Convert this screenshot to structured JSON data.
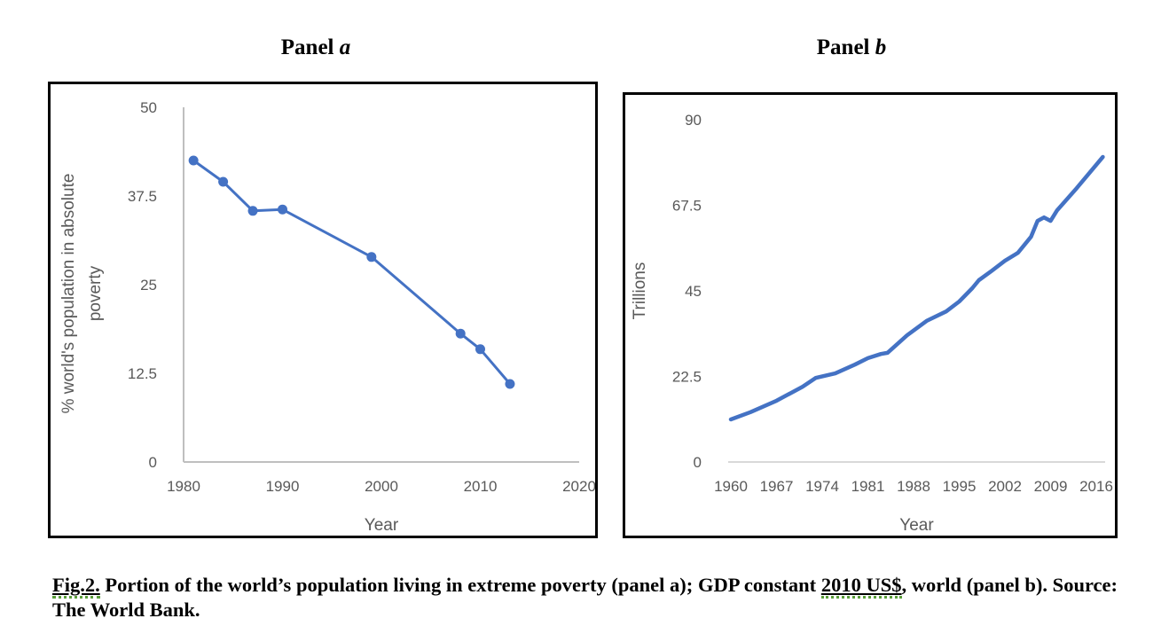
{
  "panels": {
    "a": {
      "title_prefix": "Panel ",
      "title_letter": "a"
    },
    "b": {
      "title_prefix": "Panel ",
      "title_letter": "b"
    }
  },
  "caption": {
    "fig_label": "Fig.2.",
    "text_part1": " Portion of the world’s population living in extreme poverty (panel a); GDP constant ",
    "underlined": "2010 US$",
    "text_part2": ", world (panel b). Source: The World Bank."
  },
  "colors": {
    "series": "#4472C4",
    "axis": "#BFBFBF",
    "gridline": "#D9D9D9",
    "tick_text": "#595959"
  },
  "chart_data": [
    {
      "id": "panel-a",
      "type": "line",
      "title": "Panel a",
      "xlabel": "Year",
      "ylabel": "% world's population in absolute poverty",
      "ylim": [
        0,
        50
      ],
      "xlim": [
        1980,
        2020
      ],
      "yticks": [
        "0",
        "12.5",
        "25",
        "37.5",
        "50"
      ],
      "xticks": [
        "1980",
        "1990",
        "2000",
        "2010",
        "2020"
      ],
      "grid": false,
      "markers": true,
      "series": [
        {
          "name": "Poverty",
          "x": [
            1981,
            1984,
            1987,
            1990,
            1999,
            2008,
            2010,
            2013
          ],
          "values": [
            42.5,
            39.5,
            35.4,
            35.6,
            28.9,
            18.1,
            15.9,
            11.0
          ]
        }
      ]
    },
    {
      "id": "panel-b",
      "type": "line",
      "title": "Panel b",
      "xlabel": "Year",
      "ylabel": "Trillions",
      "ylim": [
        0,
        90
      ],
      "xlim": [
        1960,
        2017
      ],
      "yticks": [
        "0",
        "22.5",
        "45",
        "67.5",
        "90"
      ],
      "xticks": [
        "1960",
        "1967",
        "1974",
        "1981",
        "1988",
        "1995",
        "2002",
        "2009",
        "2016"
      ],
      "grid": false,
      "markers": false,
      "series": [
        {
          "name": "GDP constant 2010 US$, world",
          "x": [
            1960,
            1963,
            1967,
            1971,
            1973,
            1976,
            1979,
            1981,
            1983,
            1984,
            1987,
            1990,
            1993,
            1995,
            1997,
            1998,
            2000,
            2002,
            2004,
            2006,
            2007,
            2008,
            2009,
            2010,
            2013,
            2017
          ],
          "values": [
            11.2,
            13.1,
            16.1,
            19.8,
            22.1,
            23.3,
            25.6,
            27.3,
            28.4,
            28.7,
            33.3,
            37.1,
            39.6,
            42.2,
            45.7,
            47.8,
            50.3,
            52.9,
            55.0,
            59.2,
            63.4,
            64.3,
            63.4,
            66.2,
            72.0,
            80.2
          ]
        }
      ]
    }
  ]
}
